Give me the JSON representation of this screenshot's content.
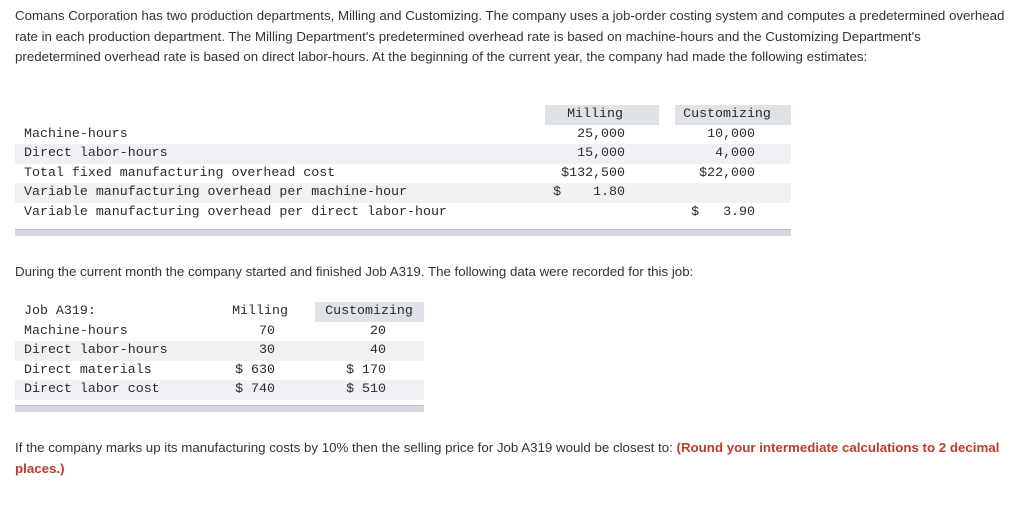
{
  "intro": "Comans Corporation has two production departments, Milling and Customizing. The company uses a job-order costing system and computes a predetermined overhead rate in each production department. The Milling Department's predetermined overhead rate is based on machine-hours and the Customizing Department's predetermined overhead rate is based on direct labor-hours. At the beginning of the current year, the company had made the following estimates:",
  "estimates": {
    "headers": [
      "Milling",
      "Customizing"
    ],
    "rows": [
      {
        "label": "Machine-hours",
        "milling": "25,000",
        "customizing": "10,000"
      },
      {
        "label": "Direct labor-hours",
        "milling": "15,000",
        "customizing": "4,000"
      },
      {
        "label": "Total fixed manufacturing overhead cost",
        "milling": "$132,500",
        "customizing": "$22,000"
      },
      {
        "label": "Variable manufacturing overhead per machine-hour",
        "milling": "$    1.80",
        "customizing": ""
      },
      {
        "label": "Variable manufacturing overhead per direct labor-hour",
        "milling": "",
        "customizing": "$   3.90"
      }
    ]
  },
  "middle": "During the current month the company started and finished Job A319. The following data were recorded for this job:",
  "job": {
    "title": "Job A319:",
    "headers": [
      "Milling",
      "Customizing"
    ],
    "rows": [
      {
        "label": "Machine-hours",
        "milling": "70",
        "customizing": "20"
      },
      {
        "label": "Direct labor-hours",
        "milling": "30",
        "customizing": "40"
      },
      {
        "label": "Direct materials",
        "milling": "$ 630",
        "customizing": "$ 170"
      },
      {
        "label": "Direct labor cost",
        "milling": "$ 740",
        "customizing": "$ 510"
      }
    ]
  },
  "question": {
    "text": "If the company marks up its manufacturing costs by 10% then the selling price for Job A319 would be closest to: ",
    "note": "(Round your intermediate calculations to 2 decimal places.)"
  }
}
